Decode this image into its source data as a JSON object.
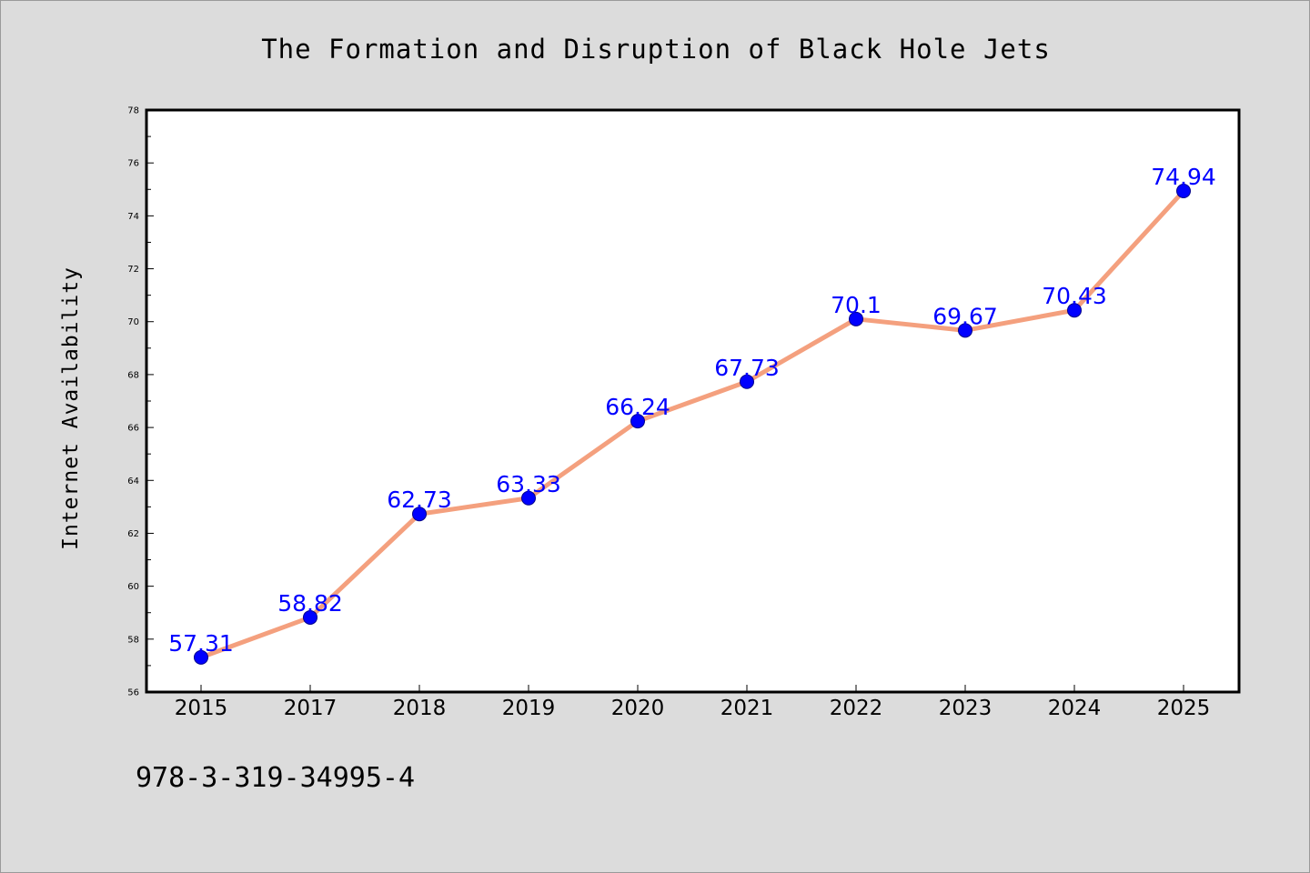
{
  "chart_data": {
    "type": "line",
    "title": "The Formation and Disruption of Black Hole Jets",
    "xlabel": "",
    "ylabel": "Internet Availability",
    "categories": [
      "2015",
      "2017",
      "2018",
      "2019",
      "2020",
      "2021",
      "2022",
      "2023",
      "2024",
      "2025"
    ],
    "values": [
      57.31,
      58.82,
      62.73,
      63.33,
      66.24,
      67.73,
      70.1,
      69.67,
      70.43,
      74.94
    ],
    "value_labels": [
      "57.31",
      "58.82",
      "62.73",
      "63.33",
      "66.24",
      "67.73",
      "70.1",
      "69.67",
      "70.43",
      "74.94"
    ],
    "ylim": [
      56,
      78
    ],
    "yticks": [
      "56",
      "58",
      "60",
      "62",
      "64",
      "66",
      "68",
      "70",
      "72",
      "74",
      "76",
      "78"
    ],
    "grid": false,
    "line_color": "#f4a07e",
    "marker_color": "#0000ff",
    "label_color": "#0000ff"
  },
  "footnote": "978-3-319-34995-4"
}
